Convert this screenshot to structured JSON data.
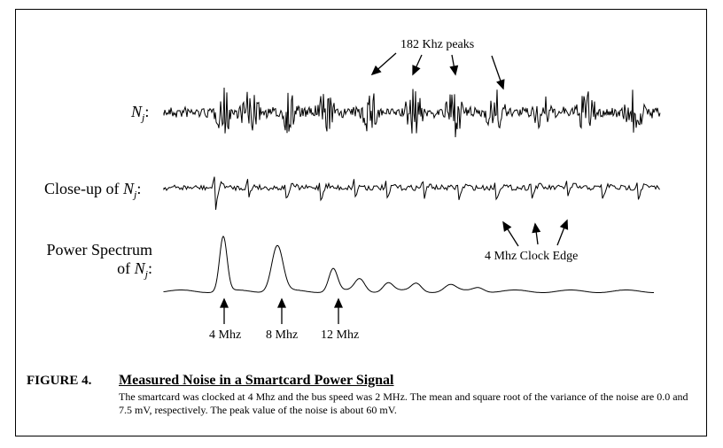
{
  "figure": {
    "panels": [
      {
        "label_prefix": "",
        "label_var": "N",
        "label_sub": "j",
        "label_suffix": ":"
      },
      {
        "label_prefix": "Close-up of ",
        "label_var": "N",
        "label_sub": "j",
        "label_suffix": ":"
      },
      {
        "label_line1": "Power Spectrum",
        "label_prefix": "of ",
        "label_var": "N",
        "label_sub": "j",
        "label_suffix": ":"
      }
    ],
    "annotations": {
      "peaks": "182 Khz peaks",
      "clock_edge": "4 Mhz Clock Edge",
      "freq_labels": [
        "4 Mhz",
        "8 Mhz",
        "12 Mhz"
      ]
    }
  },
  "caption": {
    "label": "FIGURE 4.",
    "title": "Measured Noise in a Smartcard Power Signal",
    "body": "The smartcard was clocked at 4 Mhz and the bus speed was 2 MHz. The mean and square root of the variance of the noise are 0.0 and 7.5 mV, respectively. The peak value of the noise is about 60 mV."
  }
}
